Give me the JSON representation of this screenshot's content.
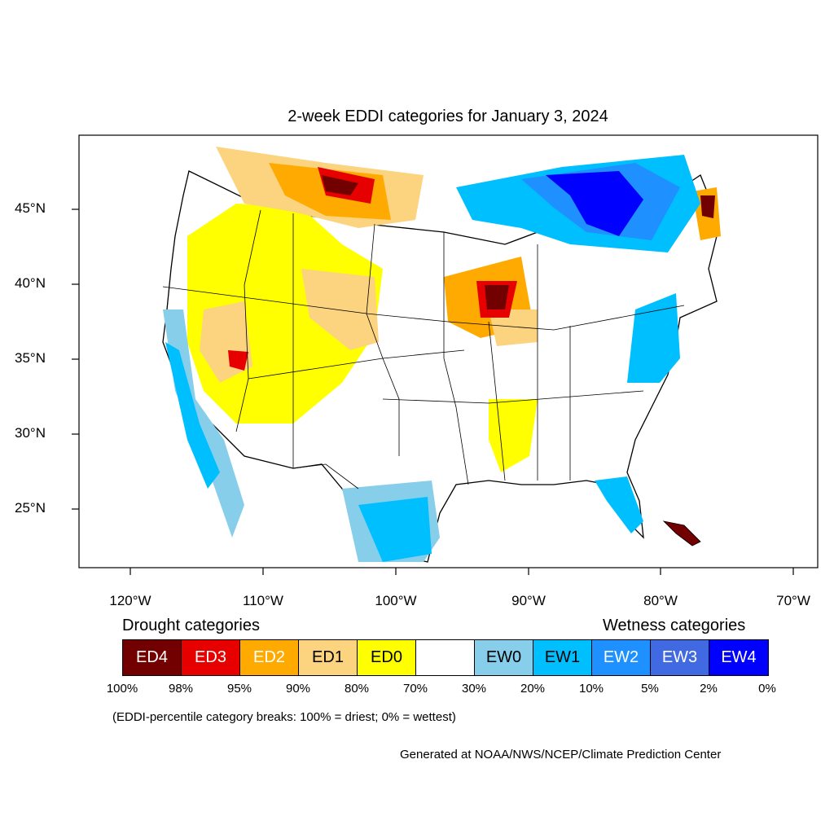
{
  "title": "2-week EDDI categories for January 3, 2024",
  "axes": {
    "lat_labels": [
      "45°N",
      "40°N",
      "35°N",
      "30°N",
      "25°N"
    ],
    "lon_labels": [
      "120°W",
      "110°W",
      "100°W",
      "90°W",
      "80°W",
      "70°W"
    ]
  },
  "legend": {
    "drought_title": "Drought categories",
    "wetness_title": "Wetness categories",
    "categories": [
      {
        "label": "ED4",
        "color": "#730000",
        "text_color": "#ffffff"
      },
      {
        "label": "ED3",
        "color": "#e60000",
        "text_color": "#ffffff"
      },
      {
        "label": "ED2",
        "color": "#ffaa00",
        "text_color": "#ffffff"
      },
      {
        "label": "ED1",
        "color": "#fcd37f",
        "text_color": "#000000"
      },
      {
        "label": "ED0",
        "color": "#ffff00",
        "text_color": "#000000"
      },
      {
        "label": "",
        "color": "#ffffff",
        "text_color": "#000000"
      },
      {
        "label": "EW0",
        "color": "#87ceeb",
        "text_color": "#000000"
      },
      {
        "label": "EW1",
        "color": "#00bfff",
        "text_color": "#000000"
      },
      {
        "label": "EW2",
        "color": "#1e90ff",
        "text_color": "#ffffff"
      },
      {
        "label": "EW3",
        "color": "#4169e1",
        "text_color": "#ffffff"
      },
      {
        "label": "EW4",
        "color": "#0000ff",
        "text_color": "#ffffff"
      }
    ],
    "breaks": [
      "100%",
      "98%",
      "95%",
      "90%",
      "80%",
      "70%",
      "30%",
      "20%",
      "10%",
      "5%",
      "2%",
      "0%"
    ]
  },
  "note": "(EDDI-percentile category breaks: 100% = driest; 0% = wettest)",
  "credit": "Generated at NOAA/NWS/NCEP/Climate Prediction Center"
}
